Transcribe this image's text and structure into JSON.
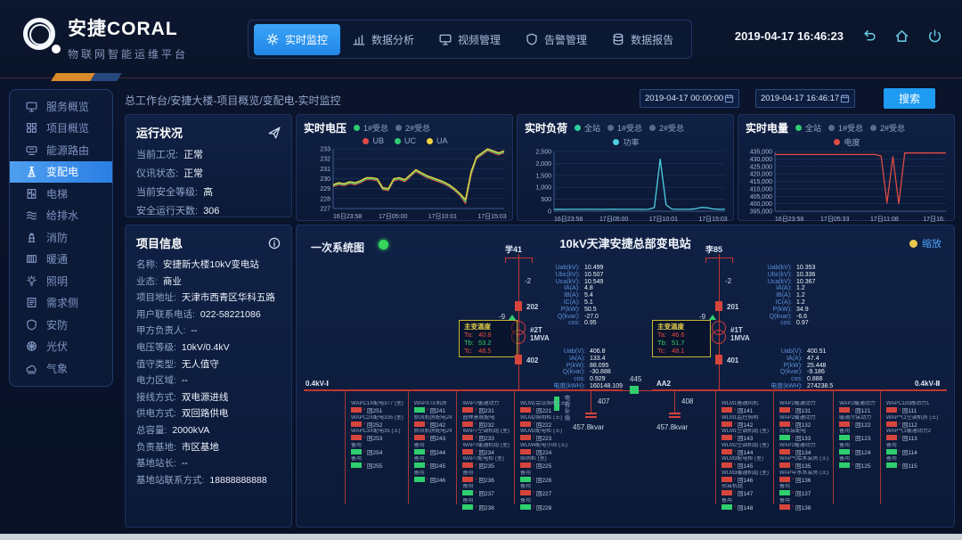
{
  "header": {
    "title": "安捷CORAL",
    "subtitle": "物联网智能运维平台",
    "nav": [
      {
        "key": "realtime-monitor",
        "icon": "gear",
        "label": "实时监控",
        "active": true
      },
      {
        "key": "data-analysis",
        "icon": "bars",
        "label": "数据分析",
        "active": false
      },
      {
        "key": "video-manage",
        "icon": "monitor",
        "label": "视频管理",
        "active": false
      },
      {
        "key": "alarm-manage",
        "icon": "shield",
        "label": "告警管理",
        "active": false
      },
      {
        "key": "data-report",
        "icon": "db",
        "label": "数据报告",
        "active": false
      }
    ],
    "datetime": "2019-04-17 16:46:23",
    "window_icons": [
      "undo",
      "home",
      "power"
    ]
  },
  "sidebar": {
    "items": [
      {
        "key": "service-overview",
        "icon": "monitor",
        "label": "服务概览",
        "active": false
      },
      {
        "key": "project-overview",
        "icon": "grid",
        "label": "项目概览",
        "active": false
      },
      {
        "key": "energy-routing",
        "icon": "router",
        "label": "能源路由",
        "active": false
      },
      {
        "key": "power-distribution",
        "icon": "tower",
        "label": "变配电",
        "active": true
      },
      {
        "key": "elevator",
        "icon": "elevator",
        "label": "电梯",
        "active": false
      },
      {
        "key": "water-supply",
        "icon": "water",
        "label": "给排水",
        "active": false
      },
      {
        "key": "fire",
        "icon": "hydrant",
        "label": "消防",
        "active": false
      },
      {
        "key": "hvac",
        "icon": "radiator",
        "label": "暖通",
        "active": false
      },
      {
        "key": "lighting",
        "icon": "bulb",
        "label": "照明",
        "active": false
      },
      {
        "key": "demand-side",
        "icon": "doc",
        "label": "需求侧",
        "active": false
      },
      {
        "key": "security",
        "icon": "shield",
        "label": "安防",
        "active": false
      },
      {
        "key": "pv",
        "icon": "solar",
        "label": "光伏",
        "active": false
      },
      {
        "key": "weather",
        "icon": "cloud",
        "label": "气象",
        "active": false
      }
    ]
  },
  "breadcrumb": "总工作台/安捷大楼-项目概览/变配电-实时监控",
  "toolbar": {
    "date_from": "2019-04-17 00:00:00",
    "date_to": "2019-04-17 16:46:17",
    "search_label": "搜索"
  },
  "status_panel": {
    "title": "运行状况",
    "rows": [
      {
        "label": "当前工况:",
        "value": "正常"
      },
      {
        "label": "仪讯状态:",
        "value": "正常"
      },
      {
        "label": "当前安全等级:",
        "value": "高"
      },
      {
        "label": "安全运行天数:",
        "value": "306"
      }
    ]
  },
  "project_panel": {
    "title": "项目信息",
    "rows": [
      {
        "label": "名称:",
        "value": "安捷新大楼10kV变电站"
      },
      {
        "label": "业态:",
        "value": "商业"
      },
      {
        "label": "项目地址:",
        "value": "天津市西青区华科五路"
      },
      {
        "label": "用户联系电话:",
        "value": "022-58221086"
      },
      {
        "label": "甲方负责人:",
        "value": "--"
      },
      {
        "label": "电压等级:",
        "value": "10kV/0.4kV"
      },
      {
        "label": "值守类型:",
        "value": "无人值守"
      },
      {
        "label": "电力区域:",
        "value": "--"
      },
      {
        "label": "接线方式:",
        "value": "双电源进线"
      },
      {
        "label": "供电方式:",
        "value": "双回路供电"
      },
      {
        "label": "总容量:",
        "value": "2000kVA"
      },
      {
        "label": "负责基地:",
        "value": "市区基地"
      },
      {
        "label": "基地站长:",
        "value": "--"
      },
      {
        "label": "基地站联系方式:",
        "value": "18888888888"
      }
    ]
  },
  "chart_data": [
    {
      "type": "line",
      "title": "实时电压",
      "station_legend": [
        {
          "label": "1#受总",
          "color": "#2ecc71",
          "active": true
        },
        {
          "label": "2#受总",
          "color": "#5a6b8c",
          "active": false
        }
      ],
      "x_labels": [
        "16日23:58",
        "17日05:00",
        "17日10:01",
        "17日15:03"
      ],
      "ymin": 227,
      "ymax": 233,
      "yticks": [
        "227",
        "228",
        "229",
        "230",
        "231",
        "232",
        "233"
      ],
      "series": [
        {
          "name": "UB",
          "color": "#e04b43",
          "values": [
            229.2,
            229.4,
            229.3,
            229.5,
            229.4,
            229.6,
            229.9,
            229.9,
            229.8,
            228.9,
            228.8,
            229.8,
            229.9,
            229.7,
            230.2,
            230.7,
            230.4,
            230.1,
            229.9,
            229.7,
            229.5,
            229.2,
            228.8,
            228.3,
            227.5,
            230.3,
            232.0,
            232.4,
            232.8,
            232.6,
            232.4,
            232.6
          ]
        },
        {
          "name": "UC",
          "color": "#2ecc71",
          "values": [
            229.3,
            229.5,
            229.4,
            229.6,
            229.5,
            229.7,
            230.0,
            230.0,
            229.9,
            229.0,
            228.9,
            229.9,
            230.0,
            229.8,
            230.3,
            230.8,
            230.5,
            230.2,
            230.0,
            229.8,
            229.6,
            229.3,
            228.9,
            228.4,
            227.7,
            230.5,
            232.1,
            232.5,
            232.9,
            232.7,
            232.5,
            232.7
          ]
        },
        {
          "name": "UA",
          "color": "#f2d13d",
          "values": [
            229.4,
            229.6,
            229.5,
            229.7,
            229.6,
            229.8,
            230.1,
            230.1,
            230.0,
            229.1,
            229.0,
            230.0,
            230.1,
            229.9,
            230.4,
            230.9,
            230.6,
            230.3,
            230.1,
            229.9,
            229.7,
            229.4,
            229.0,
            228.5,
            227.9,
            230.7,
            232.2,
            232.6,
            233.0,
            232.8,
            232.6,
            232.8
          ]
        }
      ]
    },
    {
      "type": "line",
      "title": "实时负荷",
      "station_legend": [
        {
          "label": "全站",
          "color": "#2fcf9e",
          "active": true
        },
        {
          "label": "1#受总",
          "color": "#5a6b8c",
          "active": false
        },
        {
          "label": "2#受总",
          "color": "#5a6b8c",
          "active": false
        }
      ],
      "x_labels": [
        "16日23:58",
        "17日05:00",
        "17日10:01",
        "17日15:03"
      ],
      "ymin": 0,
      "ymax": 2500,
      "yticks": [
        "0",
        "500",
        "1,000",
        "1,500",
        "2,000",
        "2,500"
      ],
      "series": [
        {
          "name": "功率",
          "color": "#4dd0e1",
          "values": [
            75,
            78,
            76,
            80,
            79,
            77,
            80,
            78,
            76,
            79,
            81,
            78,
            80,
            77,
            79,
            76,
            78,
            150,
            2180,
            260,
            90,
            80,
            78,
            82,
            100,
            155,
            140,
            95,
            82,
            80
          ]
        }
      ]
    },
    {
      "type": "line",
      "title": "实时电量",
      "station_legend": [
        {
          "label": "全站",
          "color": "#2ecc71",
          "active": true
        },
        {
          "label": "1#受总",
          "color": "#5a6b8c",
          "active": false
        },
        {
          "label": "2#受总",
          "color": "#5a6b8c",
          "active": false
        }
      ],
      "x_labels": [
        "16日23:58",
        "17日05:33",
        "17日11:08",
        "17日16:"
      ],
      "ymin": 395000,
      "ymax": 435000,
      "yticks": [
        "395,000",
        "400,000",
        "405,000",
        "410,000",
        "415,000",
        "420,000",
        "425,000",
        "430,000",
        "435,000"
      ],
      "series": [
        {
          "name": "电度",
          "color": "#e04b43",
          "values": [
            433000,
            433000,
            433000,
            433000,
            433000,
            433000,
            433000,
            433000,
            433000,
            433000,
            433000,
            433000,
            433000,
            433000,
            433000,
            433000,
            433000,
            433000,
            432000,
            400500,
            431500,
            400000,
            434000,
            434000,
            434000,
            434000,
            434000,
            434000,
            434000,
            434000
          ]
        }
      ]
    }
  ],
  "diagram": {
    "label_left": "一次系统图",
    "title": "10kV天津安捷总部变电站",
    "zoom_label": "缩放",
    "incomings": [
      {
        "name": "学41",
        "disc_top": "-2",
        "breaker": "202",
        "disc_mid": "-9",
        "meas": [
          [
            "Uab(kV):",
            "10.499"
          ],
          [
            "Ubc(kV):",
            "10.507"
          ],
          [
            "Uca(kV):",
            "10.549"
          ],
          [
            "IA(A):",
            "4.8"
          ],
          [
            "IB(A):",
            "5.4"
          ],
          [
            "IC(A):",
            "5.1"
          ],
          [
            "P(kW):",
            "50.5"
          ],
          [
            "Q(kvar):",
            "-27.0"
          ],
          [
            "cos:",
            "0.95"
          ]
        ],
        "temp_title": "主变温度",
        "temps": [
          [
            "Ta:",
            "40.8",
            "r"
          ],
          [
            "Tb:",
            "53.2",
            "g"
          ],
          [
            "Tc:",
            "48.5",
            "r"
          ]
        ],
        "transformer": "#2T",
        "capacity": "1MVA",
        "out_breaker": "402",
        "out_meas": [
          [
            "Uab(V):",
            "406.8"
          ],
          [
            "IA(A):",
            "133.4"
          ],
          [
            "P(kW):",
            "88.095"
          ],
          [
            "Q(kvar):",
            "-30.888"
          ],
          [
            "cos:",
            "0.929"
          ],
          [
            "电度(kWH):",
            "160148.109"
          ]
        ]
      },
      {
        "name": "李85",
        "disc_top": "-2",
        "breaker": "201",
        "disc_mid": "-9",
        "meas": [
          [
            "Uab(kV):",
            "10.353"
          ],
          [
            "Ubc(kV):",
            "10.336"
          ],
          [
            "Uca(kV):",
            "10.367"
          ],
          [
            "IA(A):",
            "1.2"
          ],
          [
            "IB(A):",
            "1.2"
          ],
          [
            "IC(A):",
            "1.2"
          ],
          [
            "P(kW):",
            "34.9"
          ],
          [
            "Q(kvar):",
            "-6.6"
          ],
          [
            "cos:",
            "0.97"
          ]
        ],
        "temp_title": "主变温度",
        "temps": [
          [
            "Ta:",
            "46.6",
            "r"
          ],
          [
            "Tb:",
            "51.7",
            "g"
          ],
          [
            "Tc:",
            "48.1",
            "r"
          ]
        ],
        "transformer": "#1T",
        "capacity": "1MVA",
        "out_breaker": "401",
        "out_meas": [
          [
            "Uab(V):",
            "400.51"
          ],
          [
            "IA(A):",
            "47.4"
          ],
          [
            "P(kW):",
            "25.448"
          ],
          [
            "Q(kvar):",
            "-9.186"
          ],
          [
            "cos:",
            "0.888"
          ],
          [
            "电度(kWH):",
            "274238.5"
          ]
        ]
      }
    ],
    "buses": {
      "left_label": "0.4kV-Ⅰ",
      "mid_label": "AA2",
      "right_label": "0.4kV-Ⅱ",
      "tie_breaker": "445",
      "cap_left": {
        "breaker": "407",
        "value": "457.8kvar"
      },
      "cap_right": {
        "breaker": "408",
        "value": "457.8kvar"
      },
      "cap_note": "电容补偿"
    },
    "feeders_left": [
      {
        "circuits": [
          {
            "label": "WAPC1X配电377 (室)",
            "num": "回251",
            "on": true
          },
          {
            "label": "WAPC2X配电335 (室)",
            "num": "回252",
            "on": true
          },
          {
            "label": "WAPC3X配电35 (王)",
            "num": "回253",
            "on": true
          },
          {
            "label": "备用",
            "num": "回254",
            "on": false
          },
          {
            "label": "备用",
            "num": "回255",
            "on": false
          }
        ]
      },
      {
        "circuits": [
          {
            "label": "WAPXTE机房",
            "num": "回241",
            "on": false
          },
          {
            "label": "新风机房配电24",
            "num": "回242",
            "on": true
          },
          {
            "label": "新风机房配电24",
            "num": "回243",
            "on": true
          },
          {
            "label": "备用",
            "num": "回244",
            "on": false
          },
          {
            "label": "备用",
            "num": "回245",
            "on": false
          },
          {
            "label": "备用",
            "num": "回246",
            "on": false
          }
        ]
      },
      {
        "circuits": [
          {
            "label": "WAP7暖通动力",
            "num": "回231",
            "on": true
          },
          {
            "label": "园林景观配电",
            "num": "回232",
            "on": true
          },
          {
            "label": "WAP7空调机组 (室)",
            "num": "回233",
            "on": true
          },
          {
            "label": "WAP7暖通机组 (室)",
            "num": "回234",
            "on": true
          },
          {
            "label": "WAP7配电柜 (室)",
            "num": "回235",
            "on": true
          },
          {
            "label": "备用",
            "num": "回236",
            "on": true
          },
          {
            "label": "备用",
            "num": "回237",
            "on": false
          },
          {
            "label": "备用",
            "num": "回238",
            "on": false
          }
        ]
      },
      {
        "circuits": [
          {
            "label": "WLM1会议照明 (王)",
            "num": "回221",
            "on": true
          },
          {
            "label": "WLM2照明柜 (王)",
            "num": "回222",
            "on": true
          },
          {
            "label": "WLM2配电柜 (王)",
            "num": "回223",
            "on": true
          },
          {
            "label": "WLM4配电小间 (王)",
            "num": "回224",
            "on": true
          },
          {
            "label": "照明柜 (室)",
            "num": "回225",
            "on": true
          },
          {
            "label": "备用",
            "num": "回226",
            "on": false
          },
          {
            "label": "备用",
            "num": "回227",
            "on": true
          },
          {
            "label": "备用",
            "num": "回228",
            "on": false
          }
        ]
      }
    ],
    "feeders_right": [
      {
        "circuits": [
          {
            "label": "WLM1备通风机",
            "num": "回141",
            "on": true
          },
          {
            "label": "WLM1监控照明",
            "num": "回142",
            "on": true
          },
          {
            "label": "WLM1空调机组 (室)",
            "num": "回143",
            "on": true
          },
          {
            "label": "WLM2空调机组 (室)",
            "num": "回144",
            "on": true
          },
          {
            "label": "WLM3配电柜 (室)",
            "num": "回145",
            "on": true
          },
          {
            "label": "WLM3暖通机组 (室)",
            "num": "回146",
            "on": true
          },
          {
            "label": "热泵机组",
            "num": "回147",
            "on": true
          },
          {
            "label": "备用",
            "num": "回148",
            "on": false
          }
        ]
      },
      {
        "circuits": [
          {
            "label": "WAP2暖通动力",
            "num": "回131",
            "on": true
          },
          {
            "label": "WAP2暖通动力",
            "num": "回132",
            "on": true
          },
          {
            "label": "污水泵配电",
            "num": "回133",
            "on": false
          },
          {
            "label": "WAP2暖通动力",
            "num": "回134",
            "on": true
          },
          {
            "label": "WAP气给水泵房 (王)",
            "num": "回135",
            "on": true
          },
          {
            "label": "WAP中水水泵房 (王)",
            "num": "回136",
            "on": true
          },
          {
            "label": "备用",
            "num": "回137",
            "on": false
          },
          {
            "label": "备用",
            "num": "回138",
            "on": true
          }
        ]
      },
      {
        "circuits": [
          {
            "label": "WAP2暖通动力",
            "num": "回121",
            "on": true
          },
          {
            "label": "暖通冷泵动力",
            "num": "回122",
            "on": true
          },
          {
            "label": "备用",
            "num": "回123",
            "on": false
          },
          {
            "label": "备用",
            "num": "回124",
            "on": false
          },
          {
            "label": "备用",
            "num": "回125",
            "on": false
          }
        ]
      },
      {
        "circuits": [
          {
            "label": "WAPC1回路动力1",
            "num": "回111",
            "on": true
          },
          {
            "label": "WAP气1空调机房 (王)",
            "num": "回112",
            "on": true
          },
          {
            "label": "WAP气1暖通动力2",
            "num": "回113",
            "on": true
          },
          {
            "label": "备用",
            "num": "回114",
            "on": false
          },
          {
            "label": "备用",
            "num": "回115",
            "on": false
          }
        ]
      }
    ]
  }
}
